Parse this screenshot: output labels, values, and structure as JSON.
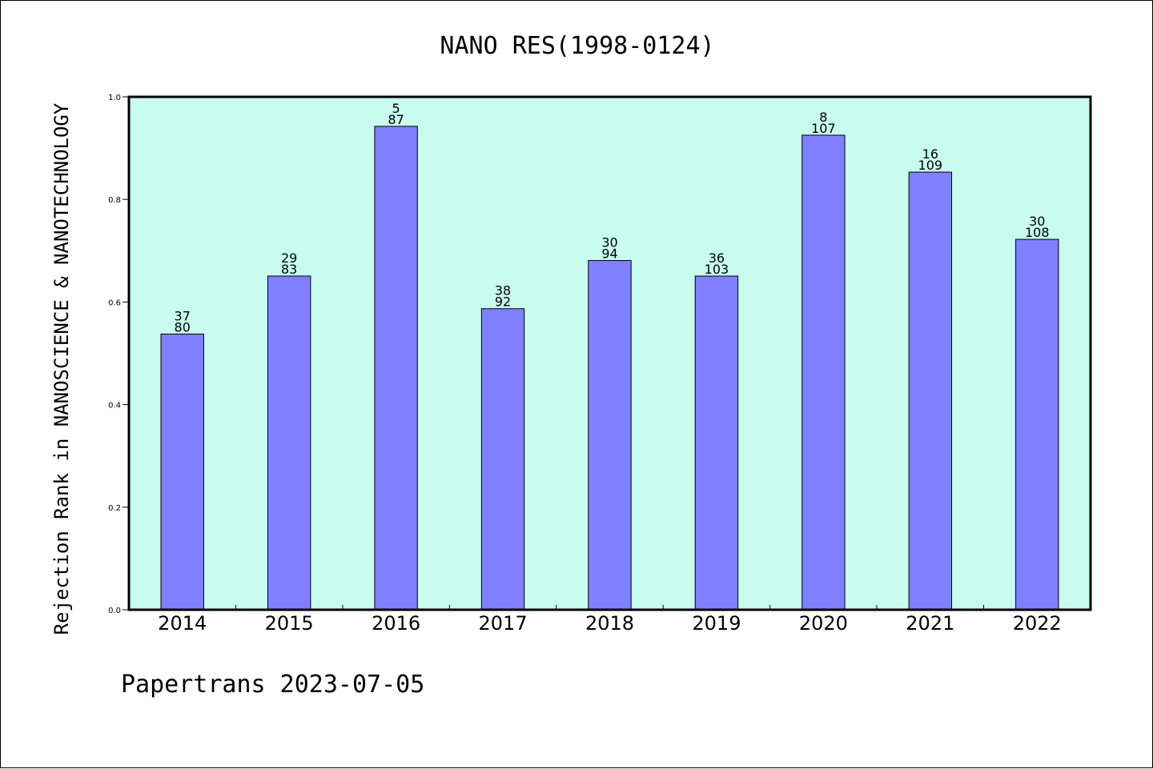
{
  "chart_data": {
    "type": "bar",
    "title": "NANO RES(1998-0124)",
    "xlabel": "",
    "ylabel": "Rejection Rank in NANOSCIENCE & NANOTECHNOLOGY",
    "categories": [
      "2014",
      "2015",
      "2016",
      "2017",
      "2018",
      "2019",
      "2020",
      "2021",
      "2022"
    ],
    "values": [
      0.5375,
      0.6506,
      0.9425,
      0.587,
      0.6809,
      0.6505,
      0.9252,
      0.8532,
      0.7222
    ],
    "data_labels": [
      [
        "37",
        "80"
      ],
      [
        "29",
        "83"
      ],
      [
        "5",
        "87"
      ],
      [
        "38",
        "92"
      ],
      [
        "30",
        "94"
      ],
      [
        "36",
        "103"
      ],
      [
        "8",
        "107"
      ],
      [
        "16",
        "109"
      ],
      [
        "30",
        "108"
      ]
    ],
    "ylim": [
      0,
      1.0
    ],
    "yticks": [
      "0.0",
      "0.2",
      "0.4",
      "0.6",
      "0.8",
      "1.0"
    ],
    "grid": false,
    "legend": "none",
    "colors": {
      "bar": "#8080ff",
      "plot_background": "#c8fcee",
      "axes": "#000000"
    }
  },
  "footer": "Papertrans 2023-07-05"
}
